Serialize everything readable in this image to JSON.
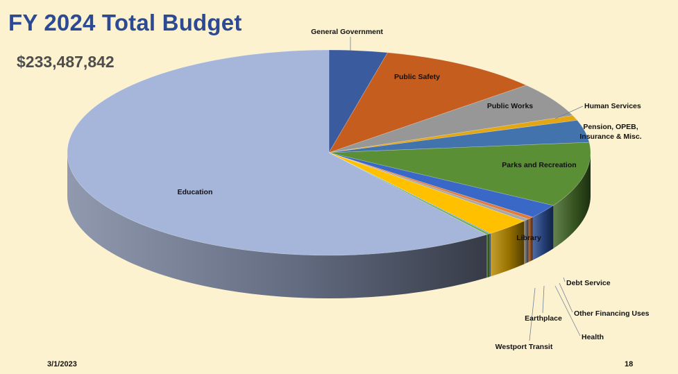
{
  "slide": {
    "title": "FY 2024 Total Budget",
    "total": "$233,487,842",
    "date": "3/1/2023",
    "page": "18"
  },
  "chart_data": {
    "type": "pie",
    "style": "3d",
    "title": "",
    "legend": "none (leader-line labels)",
    "series": [
      {
        "name": "General Government",
        "value": 3.6,
        "color": "#3a5c9e"
      },
      {
        "name": "Public Safety",
        "value": 10.0,
        "color": "#c55d1f"
      },
      {
        "name": "Public Works",
        "value": 5.5,
        "color": "#979797"
      },
      {
        "name": "Human Services",
        "value": 0.8,
        "color": "#e3a614"
      },
      {
        "name": "Pension, OPEB, Insurance & Misc.",
        "value": 3.5,
        "color": "#4273ad"
      },
      {
        "name": "Parks and Recreation",
        "value": 10.2,
        "color": "#5a8f35"
      },
      {
        "name": "Debt Service",
        "value": 2.2,
        "color": "#3a68c6"
      },
      {
        "name": "Other Financing Uses",
        "value": 0.4,
        "color": "#e07b3a"
      },
      {
        "name": "Health",
        "value": 0.4,
        "color": "#a8a8a8"
      },
      {
        "name": "Library",
        "value": 2.8,
        "color": "#ffc000"
      },
      {
        "name": "Earthplace",
        "value": 0.1,
        "color": "#6f9ad4"
      },
      {
        "name": "Westport Transit",
        "value": 0.2,
        "color": "#6bab45"
      },
      {
        "name": "Education",
        "value": 60.3,
        "color": "#a6b6da"
      }
    ]
  }
}
